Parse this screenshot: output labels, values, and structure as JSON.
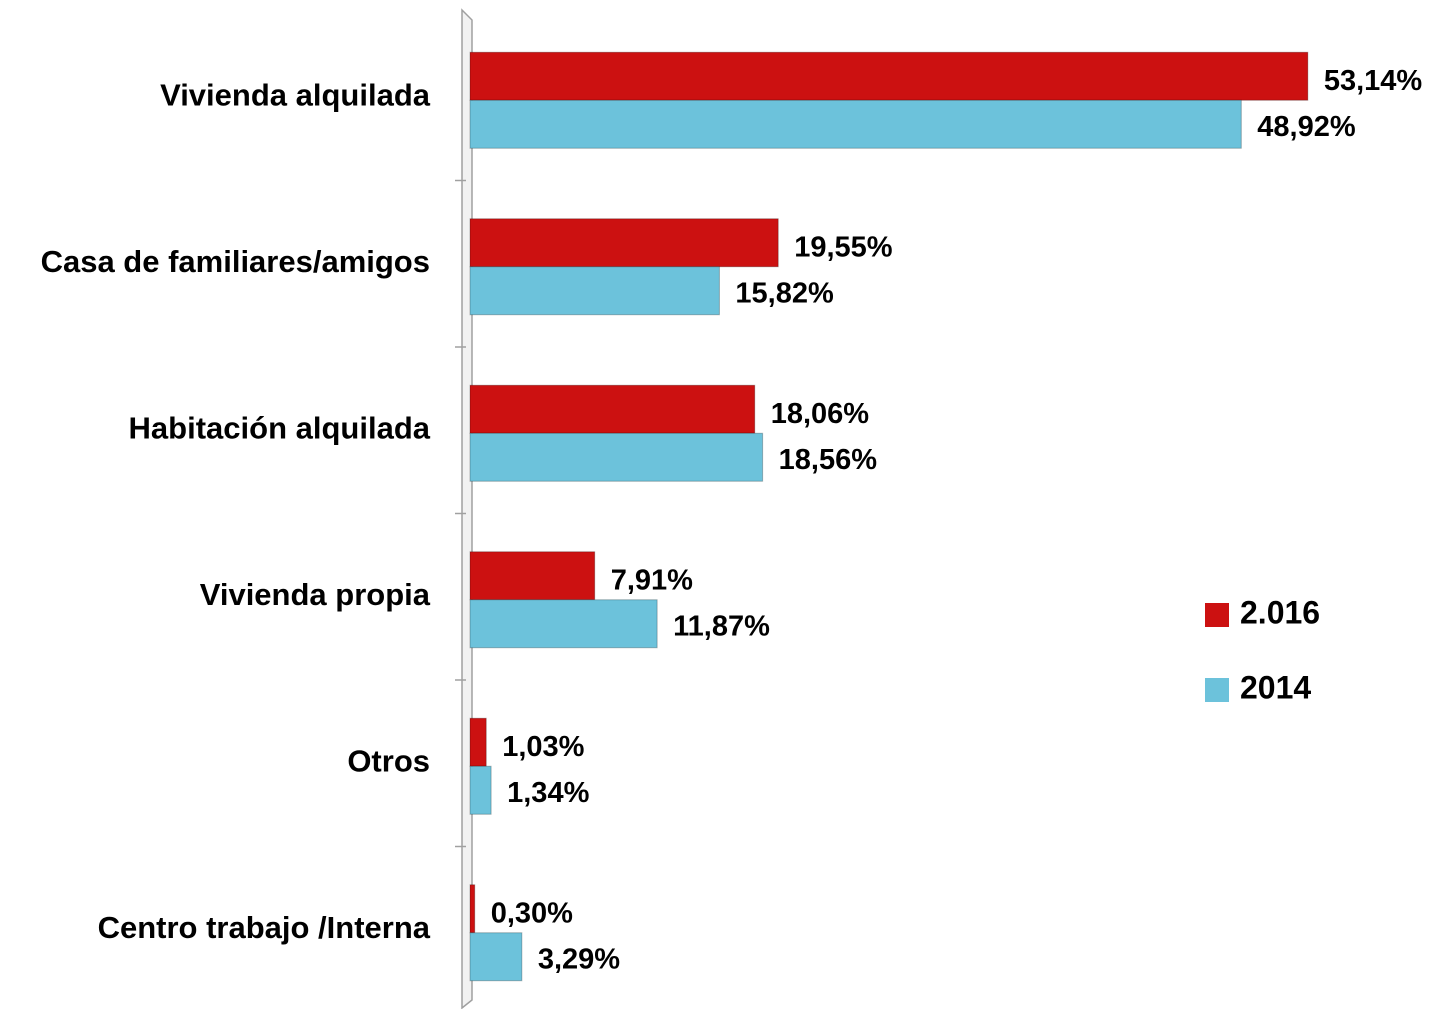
{
  "chart_data": {
    "type": "bar",
    "orientation": "horizontal",
    "categories": [
      "Vivienda alquilada",
      "Casa de familiares/amigos",
      "Habitación alquilada",
      "Vivienda propia",
      "Otros",
      "Centro trabajo /Interna"
    ],
    "series": [
      {
        "name": "2.016",
        "color": "#cc1111",
        "values": [
          53.14,
          19.55,
          18.06,
          7.91,
          1.03,
          0.3
        ],
        "value_labels": [
          "53,14%",
          "19,55%",
          "18,06%",
          "7,91%",
          "1,03%",
          "0,30%"
        ]
      },
      {
        "name": "2014",
        "color": "#6cc2db",
        "values": [
          48.92,
          15.82,
          18.56,
          11.87,
          1.34,
          3.29
        ],
        "value_labels": [
          "48,92%",
          "15,82%",
          "18,56%",
          "11,87%",
          "1,34%",
          "3,29%"
        ]
      }
    ],
    "xlim": [
      0,
      60
    ],
    "legend": "right"
  }
}
